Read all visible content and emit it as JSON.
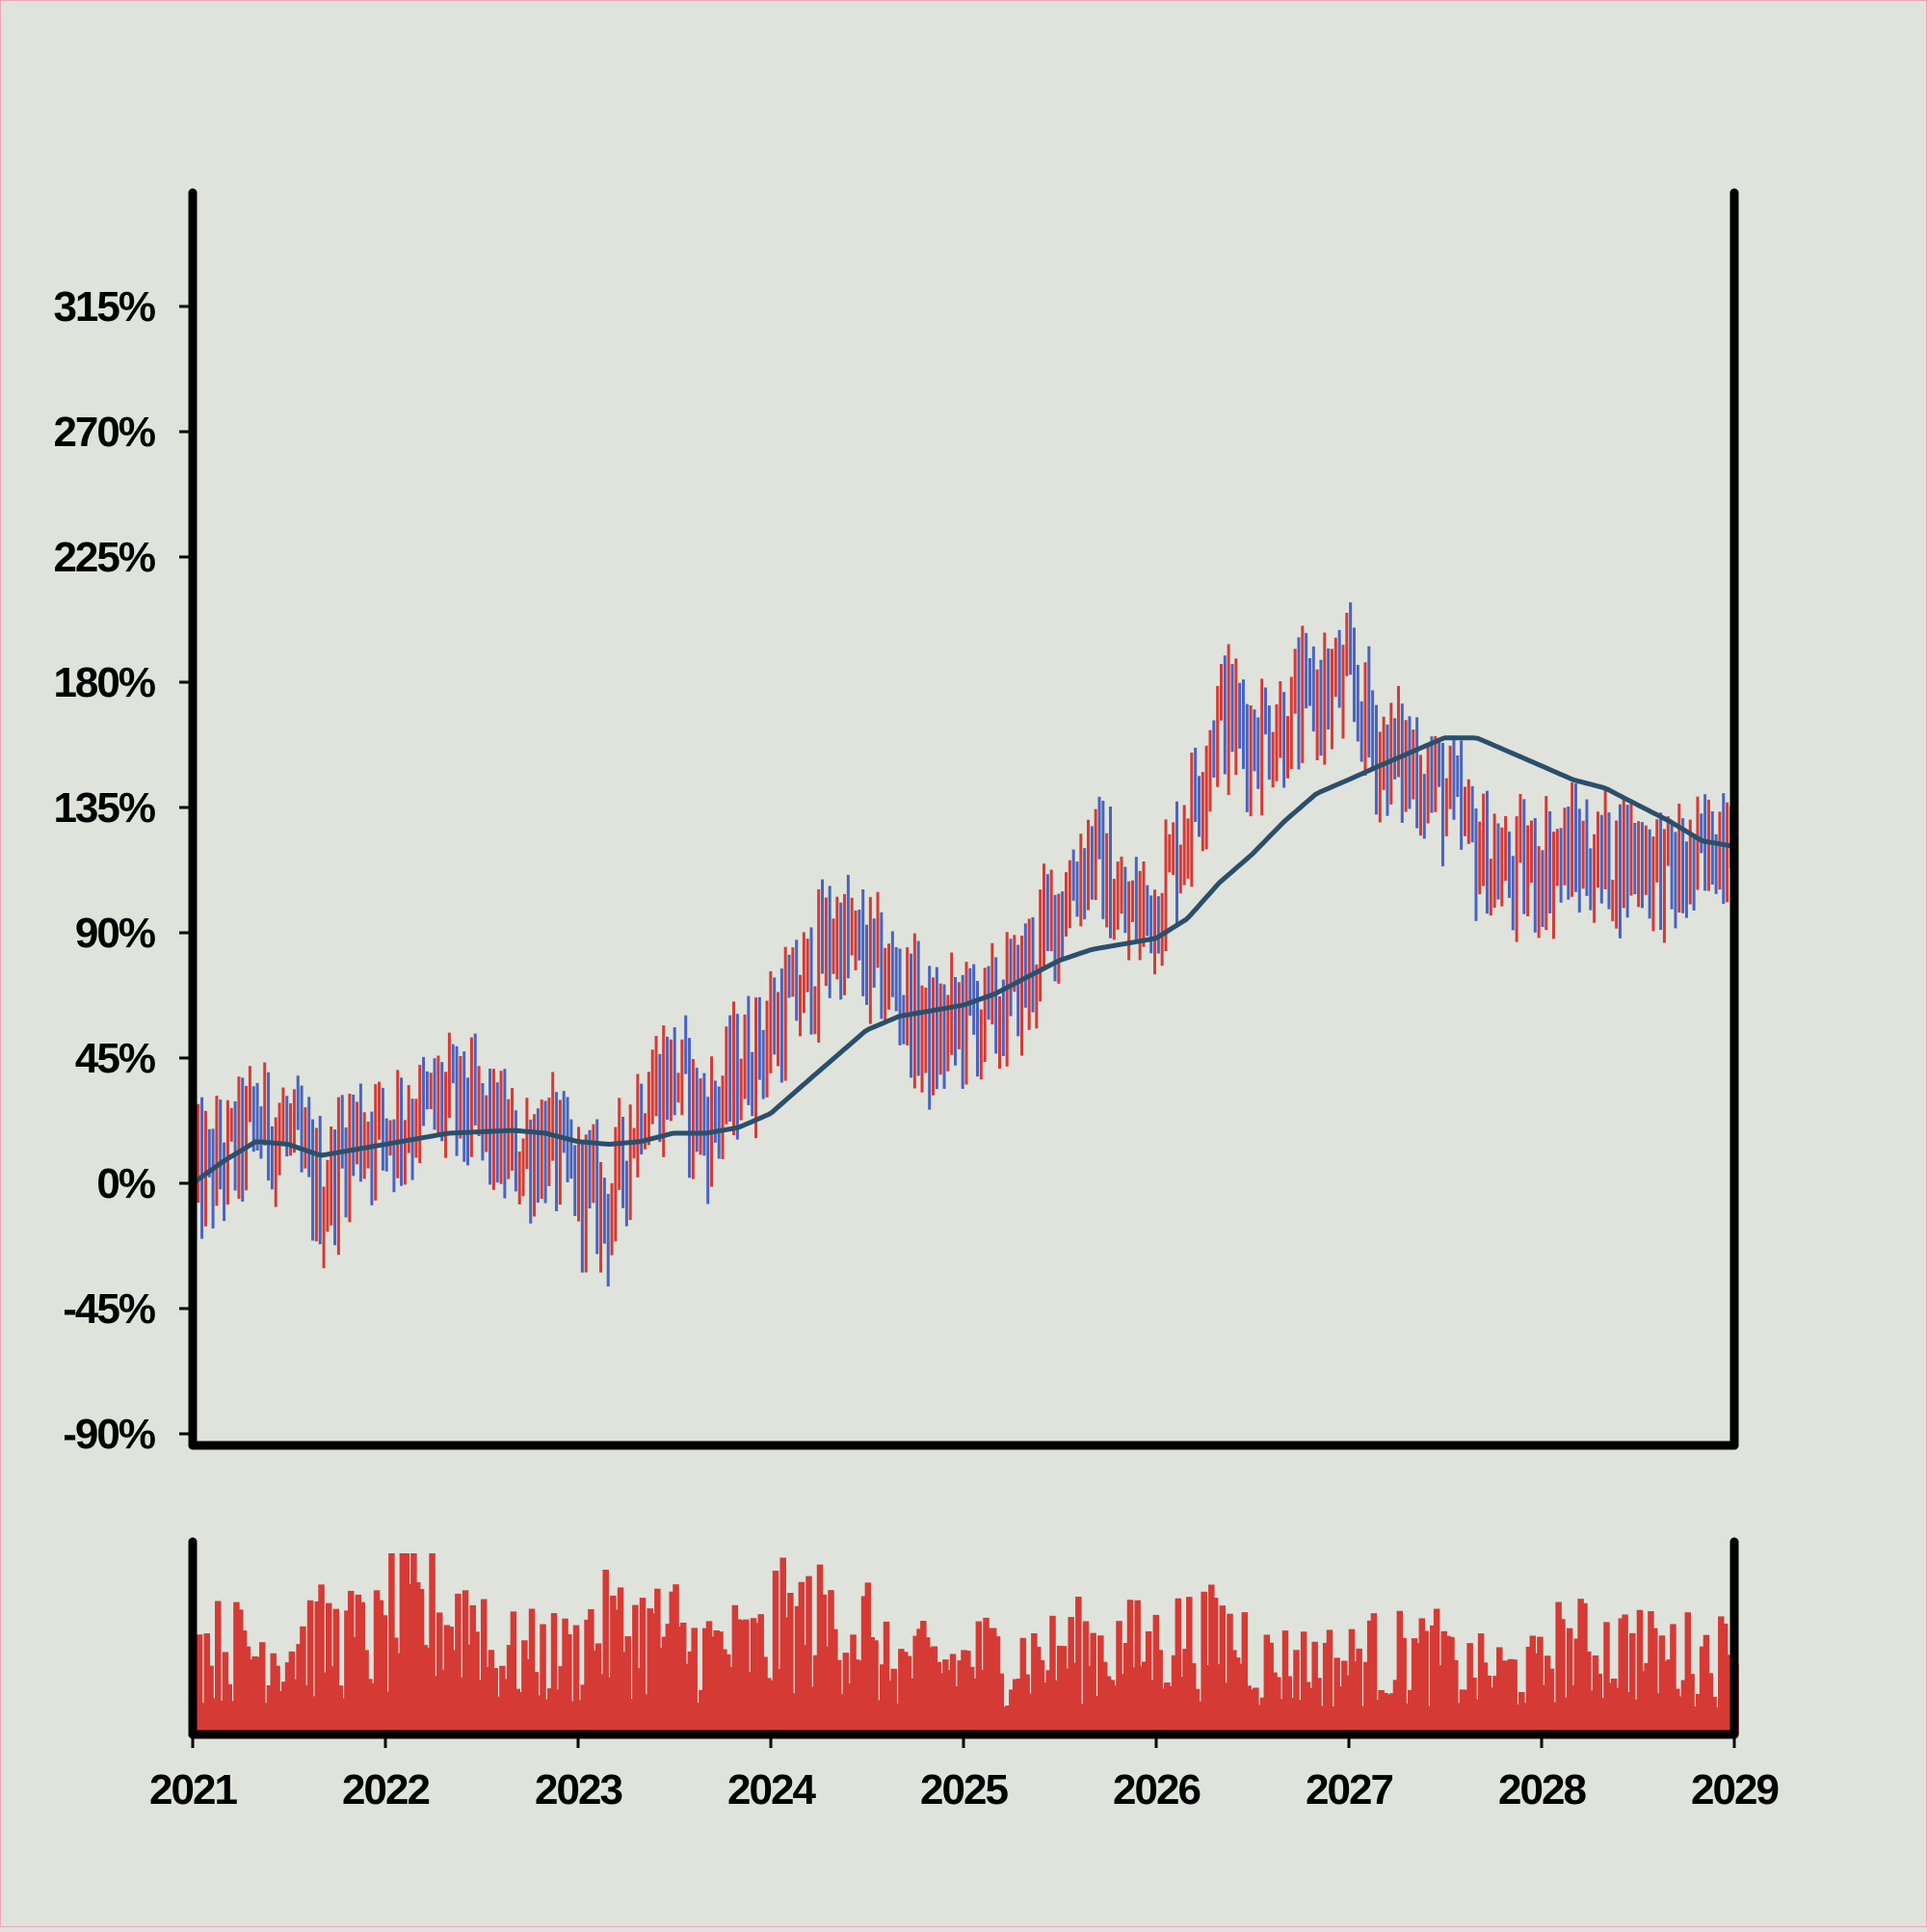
{
  "colors": {
    "background": "#dfe3dc",
    "up": "#d63a35",
    "down": "#4a63c0",
    "ma_line": "#2b4f6b",
    "volume": "#d63a35",
    "axis": "#000000"
  },
  "chart_data": [
    {
      "type": "ohlc",
      "title": "",
      "xlabel": "",
      "ylabel": "",
      "x_range": [
        "2021-01-01",
        "2029-01-01"
      ],
      "ylim": [
        -90,
        360
      ],
      "y_ticks": [
        -90,
        -45,
        0,
        45,
        90,
        135,
        180,
        225,
        270,
        315
      ],
      "y_tick_labels": [
        "-90%",
        "-45%",
        "0%",
        "45%",
        "90%",
        "135%",
        "180%",
        "225%",
        "270%",
        "315%"
      ],
      "x_ticks": [
        "2021",
        "2022",
        "2023",
        "2024",
        "2025",
        "2026",
        "2027",
        "2028",
        "2029"
      ],
      "grid": false,
      "series": [
        {
          "name": "",
          "kind": "weekly_ohlc",
          "close_path": [
            [
              "2021-01-01",
              0
            ],
            [
              "2021-03-01",
              8
            ],
            [
              "2021-05-01",
              22
            ],
            [
              "2021-07-01",
              18
            ],
            [
              "2021-09-01",
              -5
            ],
            [
              "2021-11-01",
              18
            ],
            [
              "2022-01-01",
              20
            ],
            [
              "2022-03-01",
              25
            ],
            [
              "2022-05-01",
              30
            ],
            [
              "2022-07-01",
              22
            ],
            [
              "2022-09-01",
              10
            ],
            [
              "2022-11-01",
              15
            ],
            [
              "2023-01-01",
              0
            ],
            [
              "2023-03-01",
              -10
            ],
            [
              "2023-05-01",
              30
            ],
            [
              "2023-07-01",
              40
            ],
            [
              "2023-09-01",
              20
            ],
            [
              "2023-11-01",
              40
            ],
            [
              "2024-01-01",
              55
            ],
            [
              "2024-03-01",
              70
            ],
            [
              "2024-05-01",
              90
            ],
            [
              "2024-07-01",
              80
            ],
            [
              "2024-09-01",
              70
            ],
            [
              "2024-11-01",
              50
            ],
            [
              "2025-01-01",
              60
            ],
            [
              "2025-03-01",
              60
            ],
            [
              "2025-05-01",
              75
            ],
            [
              "2025-07-01",
              100
            ],
            [
              "2025-09-01",
              120
            ],
            [
              "2025-11-01",
              95
            ],
            [
              "2026-01-01",
              100
            ],
            [
              "2026-03-01",
              130
            ],
            [
              "2026-05-01",
              170
            ],
            [
              "2026-07-01",
              160
            ],
            [
              "2026-09-01",
              165
            ],
            [
              "2026-11-01",
              175
            ],
            [
              "2027-01-01",
              180
            ],
            [
              "2027-03-01",
              155
            ],
            [
              "2027-05-01",
              150
            ],
            [
              "2027-07-01",
              140
            ],
            [
              "2027-09-01",
              120
            ],
            [
              "2027-11-01",
              110
            ],
            [
              "2028-01-01",
              115
            ],
            [
              "2028-03-01",
              118
            ],
            [
              "2028-05-01",
              115
            ],
            [
              "2028-07-01",
              120
            ],
            [
              "2028-09-01",
              110
            ],
            [
              "2028-11-01",
              115
            ],
            [
              "2029-01-01",
              135
            ]
          ]
        },
        {
          "name": "",
          "kind": "moving_average",
          "points": [
            [
              "2021-01-01",
              0
            ],
            [
              "2021-03-01",
              8
            ],
            [
              "2021-05-01",
              15
            ],
            [
              "2021-07-01",
              14
            ],
            [
              "2021-09-01",
              10
            ],
            [
              "2021-11-01",
              12
            ],
            [
              "2022-01-01",
              14
            ],
            [
              "2022-05-01",
              18
            ],
            [
              "2022-09-01",
              19
            ],
            [
              "2022-11-01",
              18
            ],
            [
              "2023-01-01",
              15
            ],
            [
              "2023-03-01",
              14
            ],
            [
              "2023-05-01",
              15
            ],
            [
              "2023-07-01",
              18
            ],
            [
              "2023-09-01",
              18
            ],
            [
              "2023-11-01",
              20
            ],
            [
              "2024-01-01",
              25
            ],
            [
              "2024-03-01",
              35
            ],
            [
              "2024-05-01",
              45
            ],
            [
              "2024-07-01",
              55
            ],
            [
              "2024-09-01",
              60
            ],
            [
              "2024-11-01",
              62
            ],
            [
              "2025-01-01",
              64
            ],
            [
              "2025-03-01",
              68
            ],
            [
              "2025-05-01",
              74
            ],
            [
              "2025-07-01",
              80
            ],
            [
              "2025-09-01",
              84
            ],
            [
              "2025-11-01",
              86
            ],
            [
              "2026-01-01",
              88
            ],
            [
              "2026-03-01",
              95
            ],
            [
              "2026-05-01",
              108
            ],
            [
              "2026-07-01",
              118
            ],
            [
              "2026-09-01",
              130
            ],
            [
              "2026-11-01",
              140
            ],
            [
              "2027-01-01",
              145
            ],
            [
              "2027-03-01",
              150
            ],
            [
              "2027-05-01",
              155
            ],
            [
              "2027-07-01",
              160
            ],
            [
              "2027-09-01",
              160
            ],
            [
              "2027-11-01",
              155
            ],
            [
              "2028-01-01",
              150
            ],
            [
              "2028-03-01",
              145
            ],
            [
              "2028-05-01",
              142
            ],
            [
              "2028-07-01",
              136
            ],
            [
              "2028-09-01",
              130
            ],
            [
              "2028-11-01",
              123
            ],
            [
              "2029-01-01",
              121
            ]
          ]
        }
      ]
    },
    {
      "type": "bar",
      "title": "",
      "xlabel": "",
      "ylabel": "",
      "note": "volume panel",
      "x_range": [
        "2021-01-01",
        "2029-01-01"
      ],
      "ylim": [
        0,
        1
      ],
      "relative_values_by_half_year": [
        0.55,
        0.6,
        0.75,
        0.5,
        0.65,
        0.55,
        0.7,
        0.45,
        0.5,
        0.55,
        0.6,
        0.45,
        0.5,
        0.4,
        0.55,
        0.5
      ]
    }
  ]
}
